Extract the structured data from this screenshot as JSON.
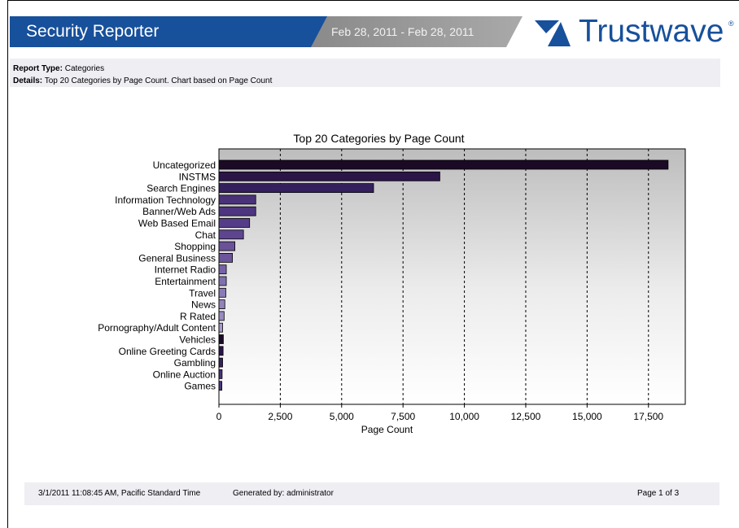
{
  "header": {
    "title": "Security Reporter",
    "date_range": "Feb 28, 2011 - Feb 28, 2011",
    "logo_text": "Trustwave",
    "logo_mark": "®",
    "colors": {
      "brand_blue": "#17509b",
      "band_gray": "#999999"
    }
  },
  "report": {
    "type_label": "Report Type:",
    "type_value": "Categories",
    "details_label": "Details:",
    "details_value": "Top 20 Categories by Page Count. Chart based on Page Count"
  },
  "chart_data": {
    "type": "bar",
    "orientation": "horizontal",
    "title": "Top 20 Categories by Page Count",
    "xlabel": "Page Count",
    "ylabel": "",
    "xlim": [
      0,
      19000
    ],
    "x_ticks": [
      0,
      2500,
      5000,
      7500,
      10000,
      12500,
      15000,
      17500
    ],
    "x_tick_labels": [
      "0",
      "2,500",
      "5,000",
      "7,500",
      "10,000",
      "12,500",
      "15,000",
      "17,500"
    ],
    "grid": "vertical-dashed",
    "categories": [
      "Uncategorized",
      "INSTMS",
      "Search Engines",
      "Information Technology",
      "Banner/Web Ads",
      "Web Based Email",
      "Chat",
      "Shopping",
      "General Business",
      "Internet Radio",
      "Entertainment",
      "Travel",
      "News",
      "R Rated",
      "Pornography/Adult Content",
      "Vehicles",
      "Online Greeting Cards",
      "Gambling",
      "Online Auction",
      "Games"
    ],
    "values": [
      18300,
      9000,
      6300,
      1500,
      1500,
      1250,
      1000,
      650,
      550,
      300,
      300,
      280,
      240,
      210,
      150,
      180,
      170,
      150,
      130,
      120
    ],
    "bar_colors": [
      "#1a0a26",
      "#2a1448",
      "#34205c",
      "#4a3278",
      "#4d3580",
      "#553c88",
      "#5e4590",
      "#6a5298",
      "#6c559c",
      "#7762a8",
      "#8070b0",
      "#8a7ab6",
      "#9282ba",
      "#9a8bc0",
      "#a89ac8",
      "#1a0a26",
      "#2a1448",
      "#34205c",
      "#4a3278",
      "#4d3580"
    ]
  },
  "footer": {
    "timestamp": "3/1/2011 11:08:45 AM, Pacific Standard Time",
    "generated_by": "Generated by: administrator",
    "page": "Page 1 of 3"
  }
}
